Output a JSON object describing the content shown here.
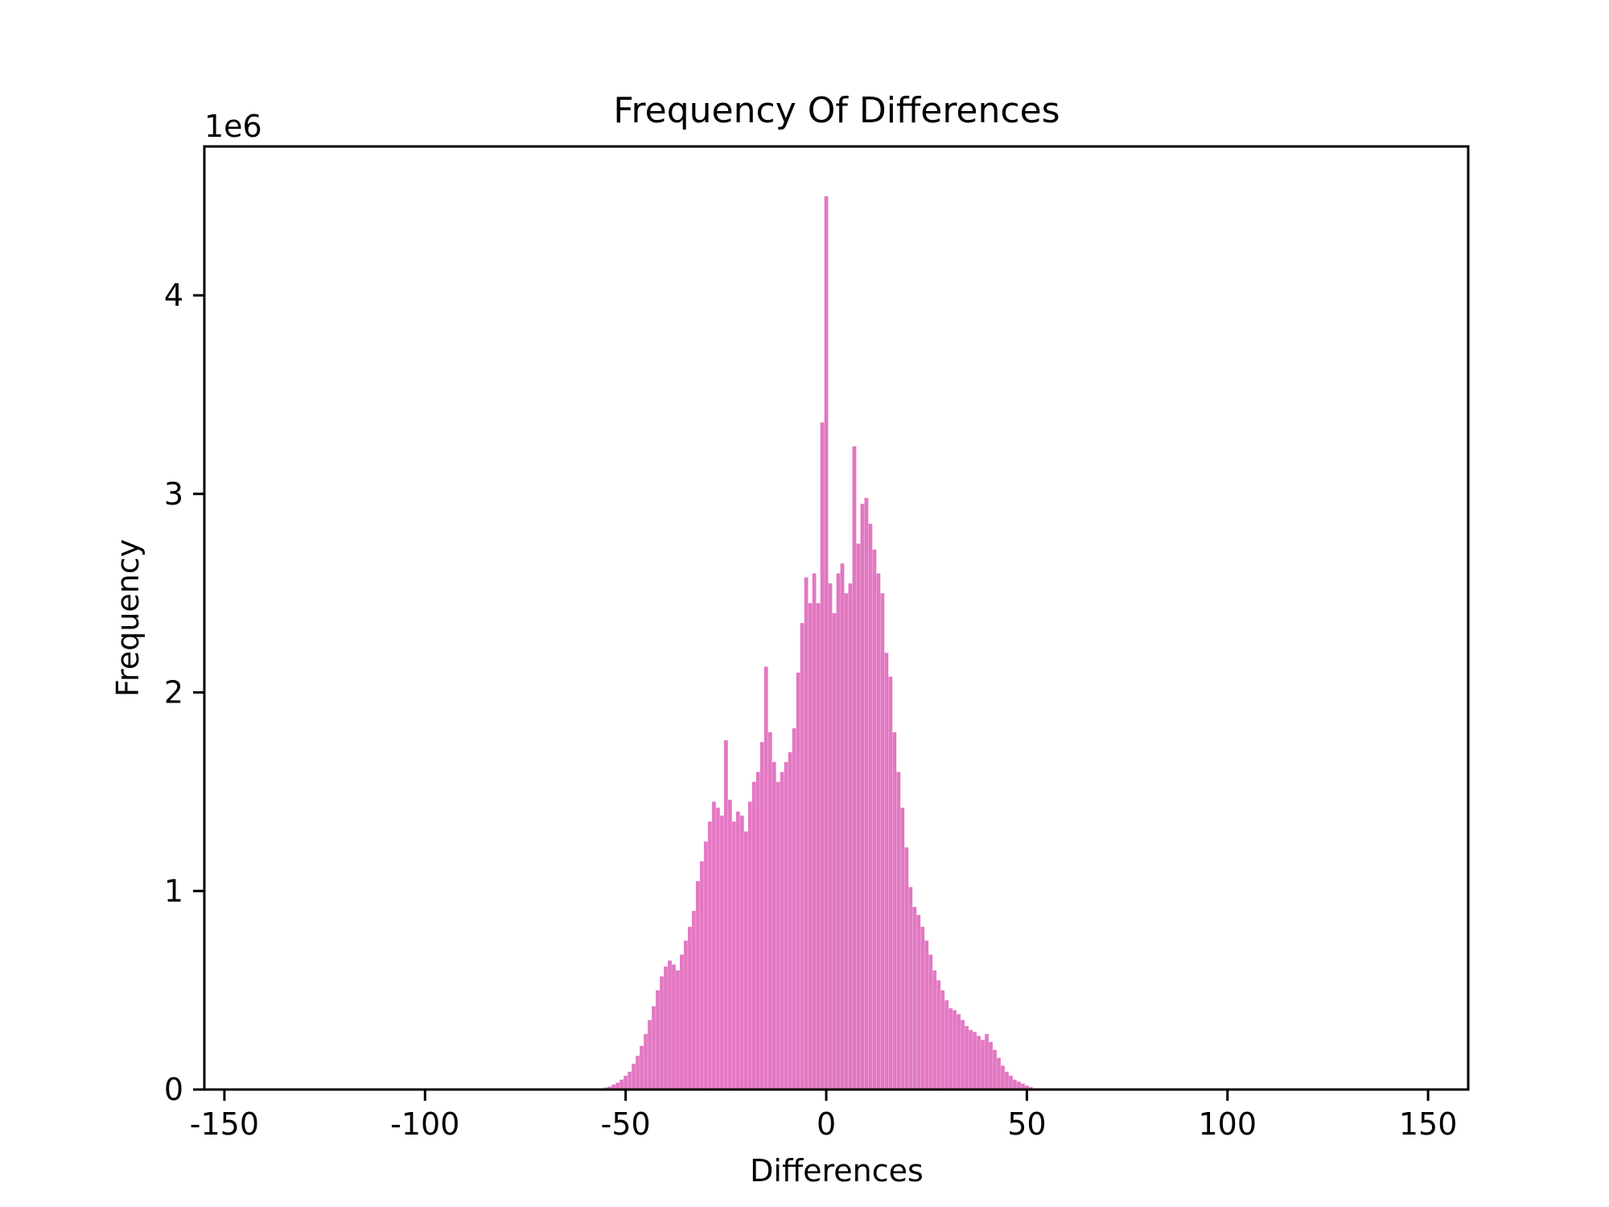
{
  "chart_data": {
    "type": "bar",
    "title": "Frequency Of Differences",
    "xlabel": "Differences",
    "ylabel": "Frequency",
    "y_scale_label": "1e6",
    "xlim": [
      -155,
      160
    ],
    "ylim": [
      0,
      4.75
    ],
    "xticks": [
      -150,
      -100,
      -50,
      0,
      50,
      100,
      150
    ],
    "xtick_labels": [
      "-150",
      "-100",
      "-50",
      "0",
      "50",
      "100",
      "150"
    ],
    "yticks": [
      0,
      1,
      2,
      3,
      4
    ],
    "ytick_labels": [
      "0",
      "1",
      "2",
      "3",
      "4"
    ],
    "grid": false,
    "bar_color": "#e377c2",
    "series": [
      {
        "x": [
          -55,
          -54,
          -53,
          -52,
          -51,
          -50,
          -49,
          -48,
          -47,
          -46,
          -45,
          -44,
          -43,
          -42,
          -41,
          -40,
          -39,
          -38,
          -37,
          -36,
          -35,
          -34,
          -33,
          -32,
          -31,
          -30,
          -29,
          -28,
          -27,
          -26,
          -25,
          -24,
          -23,
          -22,
          -21,
          -20,
          -19,
          -18,
          -17,
          -16,
          -15,
          -14,
          -13,
          -12,
          -11,
          -10,
          -9,
          -8,
          -7,
          -6,
          -5,
          -4,
          -3,
          -2,
          -1,
          0,
          1,
          2,
          3,
          4,
          5,
          6,
          7,
          8,
          9,
          10,
          11,
          12,
          13,
          14,
          15,
          16,
          17,
          18,
          19,
          20,
          21,
          22,
          23,
          24,
          25,
          26,
          27,
          28,
          29,
          30,
          31,
          32,
          33,
          34,
          35,
          36,
          37,
          38,
          39,
          40,
          41,
          42,
          43,
          44,
          45,
          46,
          47,
          48,
          49,
          50,
          51,
          52
        ],
        "values": [
          0.01,
          0.015,
          0.025,
          0.035,
          0.05,
          0.07,
          0.09,
          0.13,
          0.17,
          0.22,
          0.28,
          0.35,
          0.42,
          0.5,
          0.57,
          0.62,
          0.65,
          0.63,
          0.6,
          0.68,
          0.75,
          0.82,
          0.9,
          1.05,
          1.15,
          1.25,
          1.35,
          1.45,
          1.42,
          1.38,
          1.76,
          1.46,
          1.35,
          1.4,
          1.38,
          1.3,
          1.45,
          1.55,
          1.6,
          1.75,
          2.13,
          1.8,
          1.65,
          1.55,
          1.6,
          1.65,
          1.7,
          1.82,
          2.1,
          2.35,
          2.58,
          2.45,
          2.6,
          2.45,
          3.36,
          4.5,
          2.55,
          2.4,
          2.6,
          2.65,
          2.5,
          2.55,
          3.24,
          2.75,
          2.95,
          2.98,
          2.85,
          2.72,
          2.6,
          2.5,
          2.2,
          2.08,
          1.8,
          1.6,
          1.42,
          1.22,
          1.02,
          0.92,
          0.88,
          0.82,
          0.75,
          0.68,
          0.6,
          0.55,
          0.5,
          0.45,
          0.41,
          0.4,
          0.38,
          0.35,
          0.32,
          0.3,
          0.29,
          0.27,
          0.25,
          0.28,
          0.24,
          0.2,
          0.16,
          0.12,
          0.09,
          0.07,
          0.05,
          0.04,
          0.03,
          0.02,
          0.012,
          0.006
        ]
      }
    ]
  }
}
